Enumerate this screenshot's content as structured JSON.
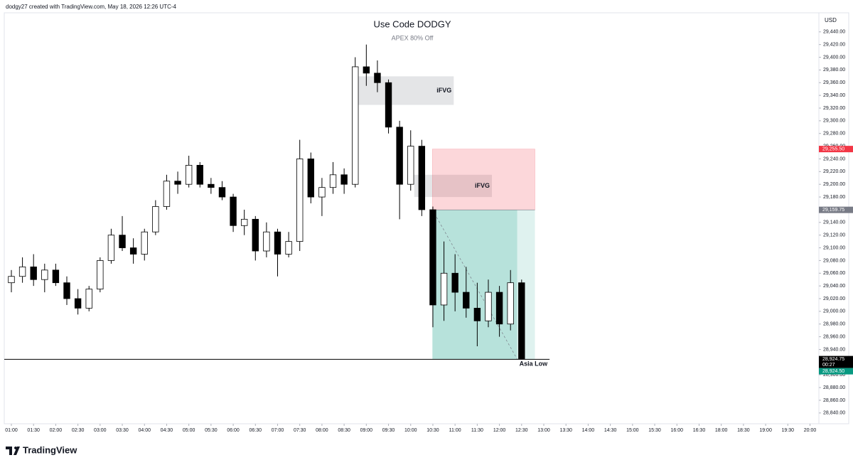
{
  "header": "dodgy27 created with TradingView.com, May 18, 2026 12:26 UTC-4",
  "footer": "TradingView",
  "chart_data": {
    "type": "candlestick",
    "title": "Use Code DODGY",
    "subtitle": "APEX 80% Off",
    "currency": "USD",
    "up_color": "#ffffff",
    "down_color": "#000000",
    "wick_color": "#000000",
    "xlim": [
      0.84,
      20.2
    ],
    "xbreak": [
      17,
      18
    ],
    "ylim": [
      28823,
      29470
    ],
    "x": [
      1,
      1.25,
      1.5,
      1.75,
      2,
      2.25,
      2.5,
      2.75,
      3,
      3.25,
      3.5,
      3.75,
      4,
      4.25,
      4.5,
      4.75,
      5,
      5.25,
      5.5,
      5.75,
      6,
      6.25,
      6.5,
      6.75,
      7,
      7.25,
      7.5,
      7.75,
      8,
      8.25,
      8.5,
      8.75,
      9,
      9.25,
      9.5,
      9.75,
      10,
      10.25,
      10.5,
      10.75,
      11,
      11.25,
      11.5,
      11.75,
      12,
      12.25,
      12.5
    ],
    "open": [
      29045,
      29055,
      29070,
      29050,
      29065,
      29045,
      29020,
      29005,
      29035,
      29080,
      29120,
      29100,
      29090,
      29125,
      29165,
      29205,
      29200,
      29230,
      29200,
      29195,
      29180,
      29135,
      29145,
      29095,
      29125,
      29090,
      29110,
      29240,
      29180,
      29195,
      29215,
      29200,
      29385,
      29375,
      29360,
      29290,
      29200,
      29260,
      29160,
      29010,
      29060,
      29030,
      29005,
      28985,
      29030,
      28980,
      29045
    ],
    "high": [
      29065,
      29085,
      29090,
      29075,
      29075,
      29055,
      29035,
      29040,
      29085,
      29130,
      29150,
      29115,
      29130,
      29175,
      29215,
      29220,
      29245,
      29235,
      29210,
      29205,
      29185,
      29160,
      29150,
      29140,
      29130,
      29125,
      29270,
      29250,
      29210,
      29235,
      29225,
      29400,
      29420,
      29395,
      29365,
      29300,
      29285,
      29270,
      29165,
      29110,
      29090,
      29070,
      29045,
      29050,
      29040,
      29065,
      29050
    ],
    "low": [
      29030,
      29045,
      29040,
      29030,
      29040,
      29010,
      28995,
      29000,
      29030,
      29075,
      29095,
      29075,
      29080,
      29120,
      29160,
      29185,
      29195,
      29195,
      29185,
      29175,
      29125,
      29120,
      29080,
      29085,
      29055,
      29085,
      29095,
      29170,
      29150,
      29185,
      29185,
      29195,
      29355,
      29345,
      29280,
      29145,
      29190,
      29150,
      28975,
      28985,
      29000,
      28990,
      28945,
      28975,
      28960,
      28970,
      28924.5
    ],
    "close": [
      29055,
      29070,
      29050,
      29065,
      29045,
      29020,
      29005,
      29035,
      29080,
      29120,
      29100,
      29090,
      29125,
      29165,
      29205,
      29200,
      29230,
      29200,
      29195,
      29180,
      29135,
      29145,
      29095,
      29125,
      29090,
      29110,
      29240,
      29180,
      29195,
      29215,
      29200,
      29385,
      29375,
      29360,
      29290,
      29200,
      29260,
      29160,
      29010,
      29060,
      29030,
      29005,
      28985,
      29030,
      28980,
      29045,
      28924.75
    ],
    "yticks": [
      {
        "value": 28840,
        "label": "28,840.00"
      },
      {
        "value": 28860,
        "label": "28,860.00"
      },
      {
        "value": 28880,
        "label": "28,880.00"
      },
      {
        "value": 28900,
        "label": "28,900.00"
      },
      {
        "value": 28920,
        "label": "28,920.00"
      },
      {
        "value": 28940,
        "label": "28,940.00"
      },
      {
        "value": 28960,
        "label": "28,960.00"
      },
      {
        "value": 28980,
        "label": "28,980.00"
      },
      {
        "value": 29000,
        "label": "29,000.00"
      },
      {
        "value": 29020,
        "label": "29,020.00"
      },
      {
        "value": 29040,
        "label": "29,040.00"
      },
      {
        "value": 29060,
        "label": "29,060.00"
      },
      {
        "value": 29080,
        "label": "29,080.00"
      },
      {
        "value": 29100,
        "label": "29,100.00"
      },
      {
        "value": 29120,
        "label": "29,120.00"
      },
      {
        "value": 29140,
        "label": "29,140.00"
      },
      {
        "value": 29160,
        "label": "29,160.00"
      },
      {
        "value": 29180,
        "label": "29,180.00"
      },
      {
        "value": 29200,
        "label": "29,200.00"
      },
      {
        "value": 29220,
        "label": "29,220.00"
      },
      {
        "value": 29240,
        "label": "29,240.00"
      },
      {
        "value": 29260,
        "label": "29,260.00"
      },
      {
        "value": 29280,
        "label": "29,280.00"
      },
      {
        "value": 29300,
        "label": "29,300.00"
      },
      {
        "value": 29320,
        "label": "29,320.00"
      },
      {
        "value": 29340,
        "label": "29,340.00"
      },
      {
        "value": 29360,
        "label": "29,360.00"
      },
      {
        "value": 29380,
        "label": "29,380.00"
      },
      {
        "value": 29400,
        "label": "29,400.00"
      },
      {
        "value": 29420,
        "label": "29,420.00"
      },
      {
        "value": 29440,
        "label": "29,440.00"
      }
    ],
    "xticks": [
      {
        "value": 1,
        "label": "01:00"
      },
      {
        "value": 1.5,
        "label": "01:30"
      },
      {
        "value": 2,
        "label": "02:00"
      },
      {
        "value": 2.5,
        "label": "02:30"
      },
      {
        "value": 3,
        "label": "03:00"
      },
      {
        "value": 3.5,
        "label": "03:30"
      },
      {
        "value": 4,
        "label": "04:00"
      },
      {
        "value": 4.5,
        "label": "04:30"
      },
      {
        "value": 5,
        "label": "05:00"
      },
      {
        "value": 5.5,
        "label": "05:30"
      },
      {
        "value": 6,
        "label": "06:00"
      },
      {
        "value": 6.5,
        "label": "06:30"
      },
      {
        "value": 7,
        "label": "07:00"
      },
      {
        "value": 7.5,
        "label": "07:30"
      },
      {
        "value": 8,
        "label": "08:00"
      },
      {
        "value": 8.5,
        "label": "08:30"
      },
      {
        "value": 9,
        "label": "09:00"
      },
      {
        "value": 9.5,
        "label": "09:30"
      },
      {
        "value": 10,
        "label": "10:00"
      },
      {
        "value": 10.5,
        "label": "10:30"
      },
      {
        "value": 11,
        "label": "11:00"
      },
      {
        "value": 11.5,
        "label": "11:30"
      },
      {
        "value": 12,
        "label": "12:00"
      },
      {
        "value": 12.5,
        "label": "12:30"
      },
      {
        "value": 13,
        "label": "13:00"
      },
      {
        "value": 13.5,
        "label": "13:30"
      },
      {
        "value": 14,
        "label": "14:00"
      },
      {
        "value": 14.5,
        "label": "14:30"
      },
      {
        "value": 15,
        "label": "15:00"
      },
      {
        "value": 15.5,
        "label": "15:30"
      },
      {
        "value": 16,
        "label": "16:00"
      },
      {
        "value": 16.5,
        "label": "16:30"
      },
      {
        "value": 18,
        "label": "18:00"
      },
      {
        "value": 18.5,
        "label": "18:30"
      },
      {
        "value": 19,
        "label": "19:00"
      },
      {
        "value": 19.5,
        "label": "19:30"
      },
      {
        "value": 20,
        "label": "20:00"
      }
    ],
    "zones": [
      {
        "label": "iFVG",
        "top": 29370,
        "bottom": 29325,
        "x0": 8.74,
        "x1": 10.97
      },
      {
        "label": "iFVG",
        "top": 29215,
        "bottom": 29180,
        "x0": 10.08,
        "x1": 11.83
      }
    ],
    "position": {
      "entry": 29159.75,
      "stop": 29255.5,
      "target": 28924.5,
      "x0": 10.49,
      "x1": 12.8,
      "x_now": 12.4
    },
    "level": {
      "label": "Asia Low",
      "value": 28924.5,
      "x0": 0.84,
      "x1": 13.13
    },
    "countdown": "00:27",
    "price_tags": [
      {
        "value": 29255.5,
        "label": "29,255.50",
        "color": "#f23645"
      },
      {
        "value": 29159.75,
        "label": "29,159.75",
        "color": "#787b86"
      },
      {
        "value": 28924.75,
        "label": "28,924.75",
        "color": "#000000"
      },
      {
        "value": 28924.5,
        "label": "28,924.50",
        "color": "#089981"
      }
    ]
  }
}
